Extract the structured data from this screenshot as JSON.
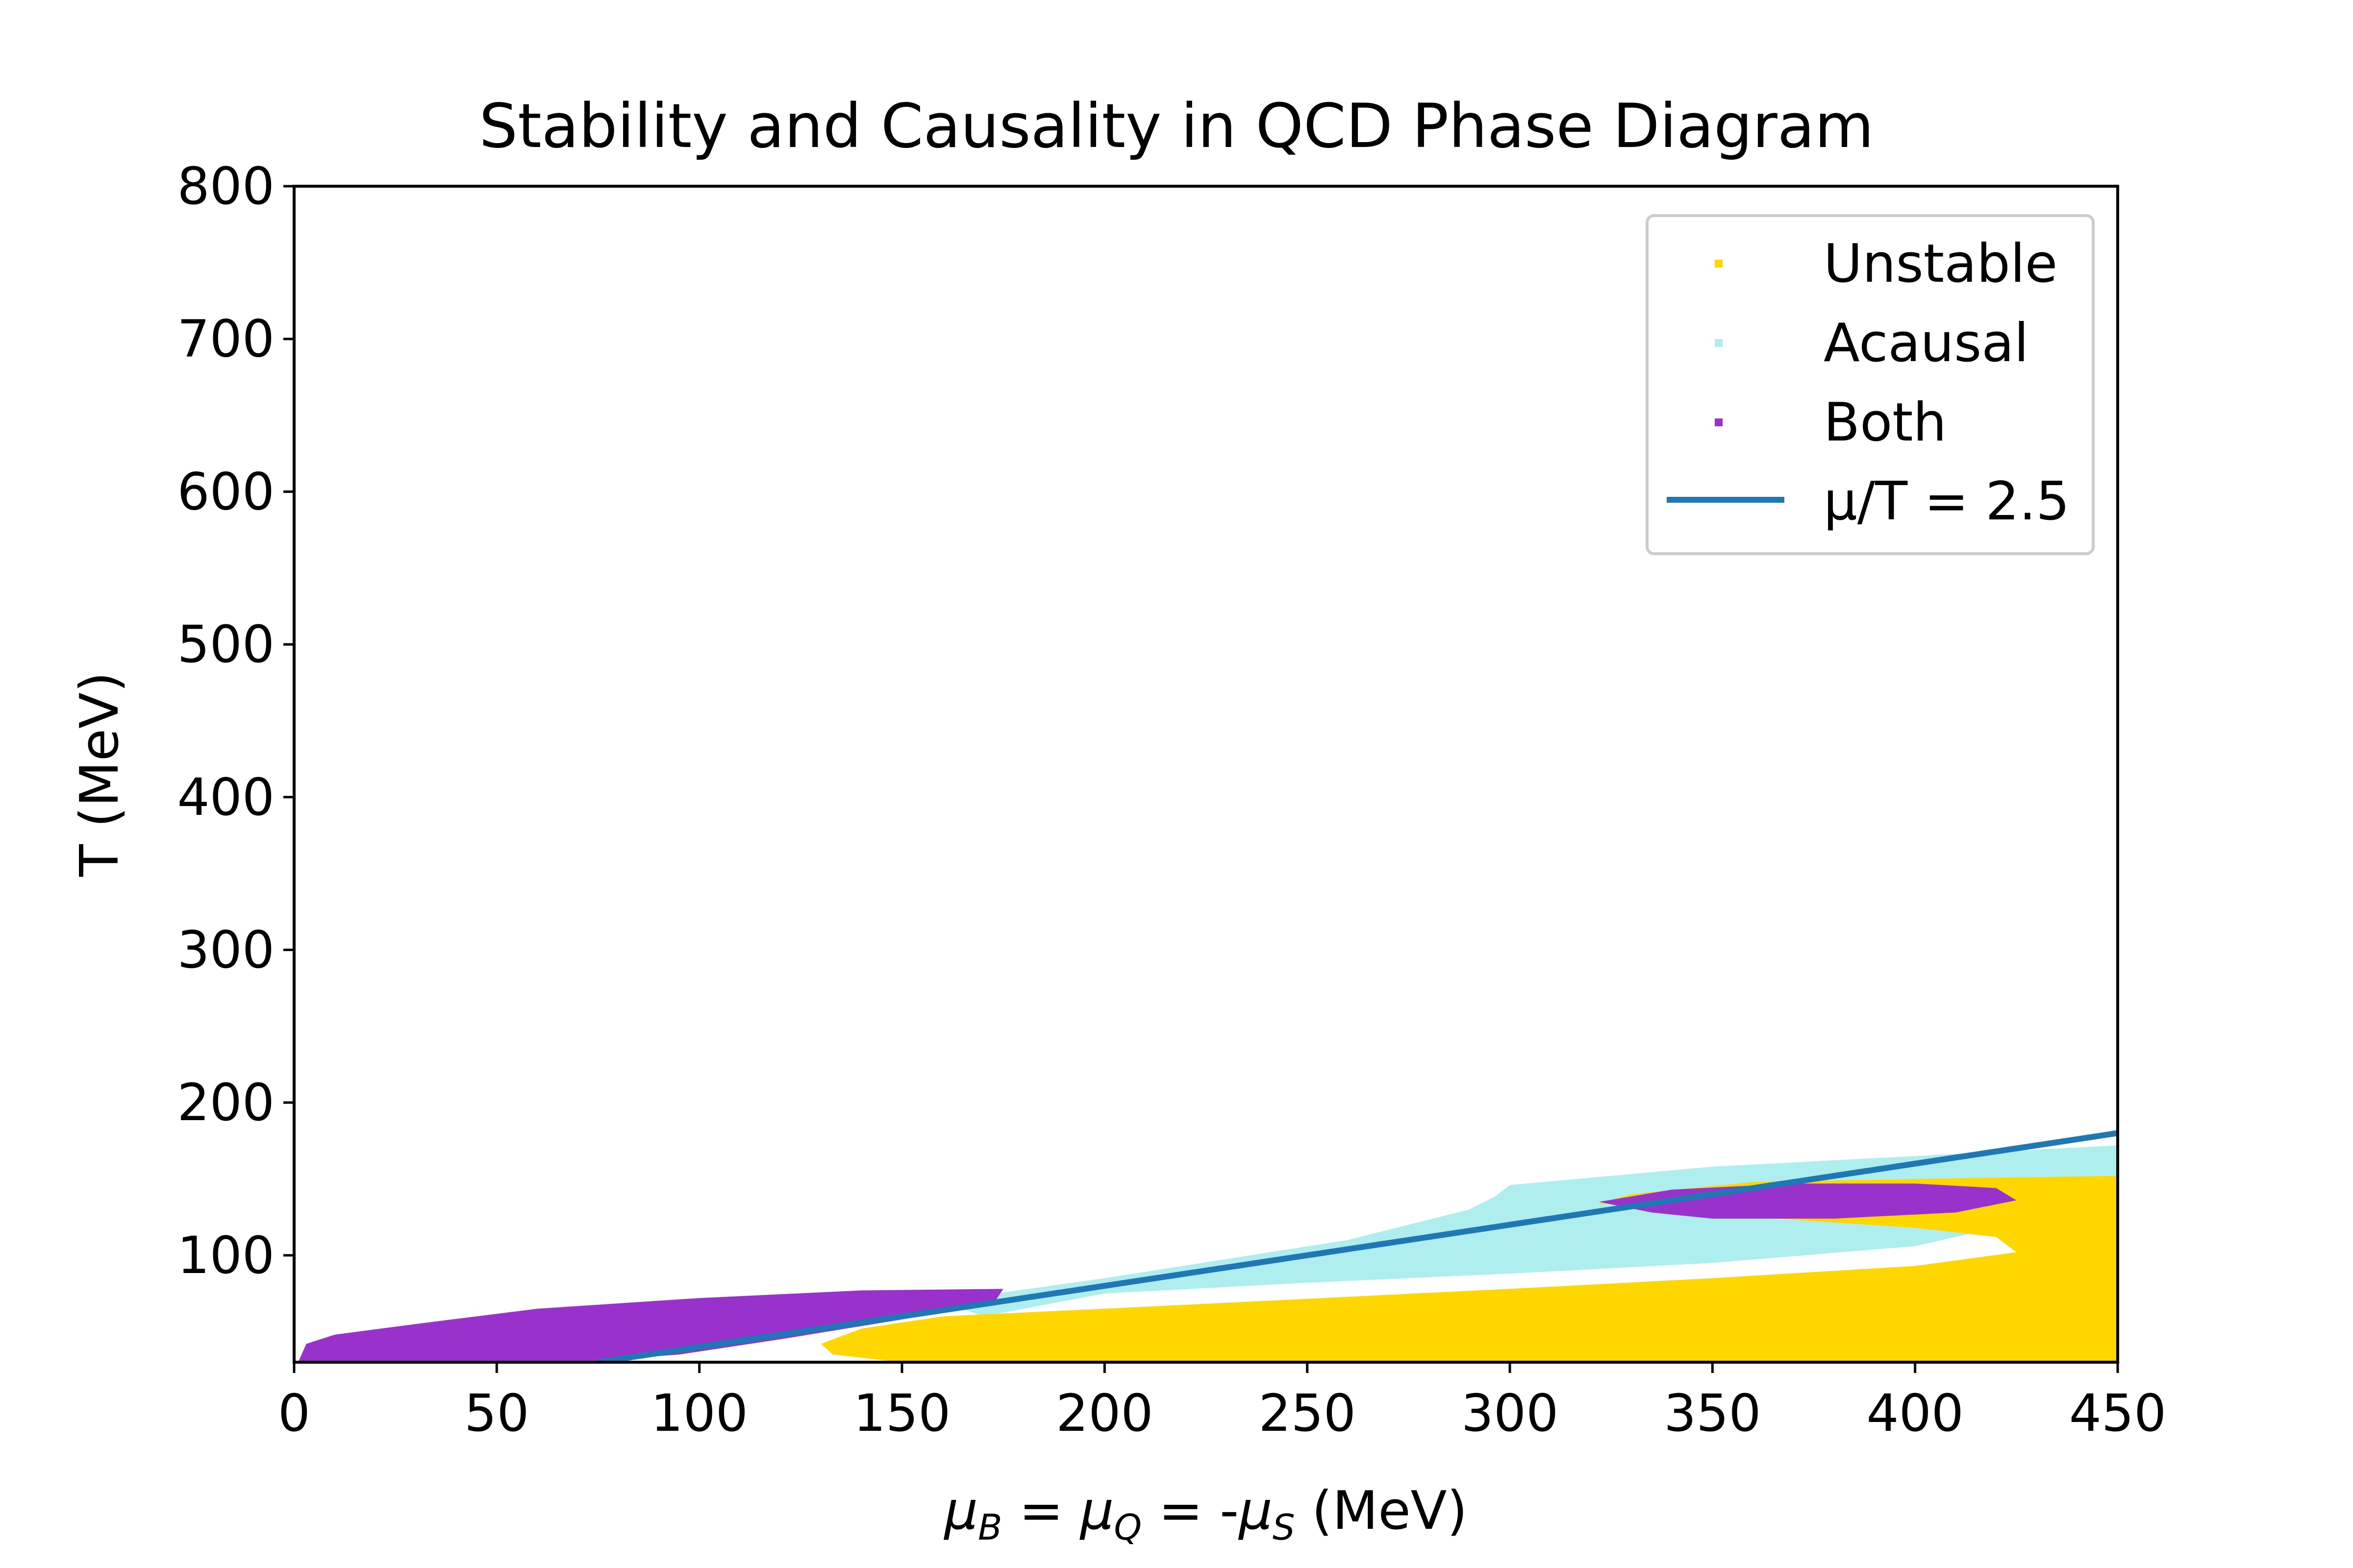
{
  "chart_data": {
    "type": "scatter",
    "title": "Stability and Causality in QCD Phase Diagram",
    "xlabel": {
      "mu1": "μ",
      "sub1": "B",
      "eq1": " = ",
      "mu2": "μ",
      "sub2": "Q",
      "eq2": " = -",
      "mu3": "μ",
      "sub3": "S",
      "unit": " (MeV)"
    },
    "ylabel": "T (MeV)",
    "xlim": [
      0,
      450
    ],
    "ylim": [
      30,
      800
    ],
    "xticks": [
      "0",
      "50",
      "100",
      "150",
      "200",
      "250",
      "300",
      "350",
      "400",
      "450"
    ],
    "yticks": [
      "100",
      "200",
      "300",
      "400",
      "500",
      "600",
      "700",
      "800"
    ],
    "legend_position": "upper right",
    "colors": {
      "unstable": "#FFD700",
      "acausal": "#AFEEEE",
      "both": "#9932CC",
      "line": "#1F77B4"
    },
    "series": [
      {
        "name": "Acausal",
        "kind": "region",
        "boundary_mu": [
          160,
          200,
          260,
          290,
          296,
          300,
          350,
          400,
          450,
          450,
          420,
          400,
          350,
          300,
          250,
          200,
          170
        ],
        "boundary_T": [
          70,
          85,
          110,
          130,
          138,
          146,
          158,
          165,
          172,
          150,
          118,
          106,
          95,
          88,
          82,
          75,
          60
        ]
      },
      {
        "name": "Unstable",
        "kind": "region",
        "boundary_mu": [
          322,
          330,
          360,
          400,
          450,
          450,
          320,
          300,
          250,
          200,
          150,
          133,
          130,
          140,
          160,
          200,
          300,
          350,
          400,
          425,
          420,
          400,
          360
        ],
        "boundary_T": [
          134,
          140,
          148,
          150,
          152,
          30,
          30,
          30,
          30,
          30,
          30,
          35,
          42,
          52,
          60,
          65,
          78,
          85,
          93,
          102,
          112,
          118,
          125
        ]
      },
      {
        "name": "Both",
        "kind": "region",
        "boundary_mu": [
          1,
          3,
          10,
          30,
          60,
          100,
          140,
          175,
          173,
          150,
          120,
          95,
          70,
          1
        ],
        "boundary_T": [
          30,
          42,
          48,
          55,
          65,
          72,
          77,
          78,
          70,
          58,
          45,
          35,
          30,
          30
        ]
      },
      {
        "name": "Both",
        "kind": "region",
        "boundary_mu": [
          322,
          340,
          370,
          400,
          420,
          425,
          410,
          380,
          350,
          335
        ],
        "boundary_T": [
          135,
          143,
          147,
          147,
          144,
          136,
          128,
          124,
          124,
          128
        ]
      },
      {
        "name": "μ/T = 2.5",
        "kind": "line",
        "x": [
          75,
          450
        ],
        "y": [
          30,
          180
        ]
      }
    ]
  }
}
